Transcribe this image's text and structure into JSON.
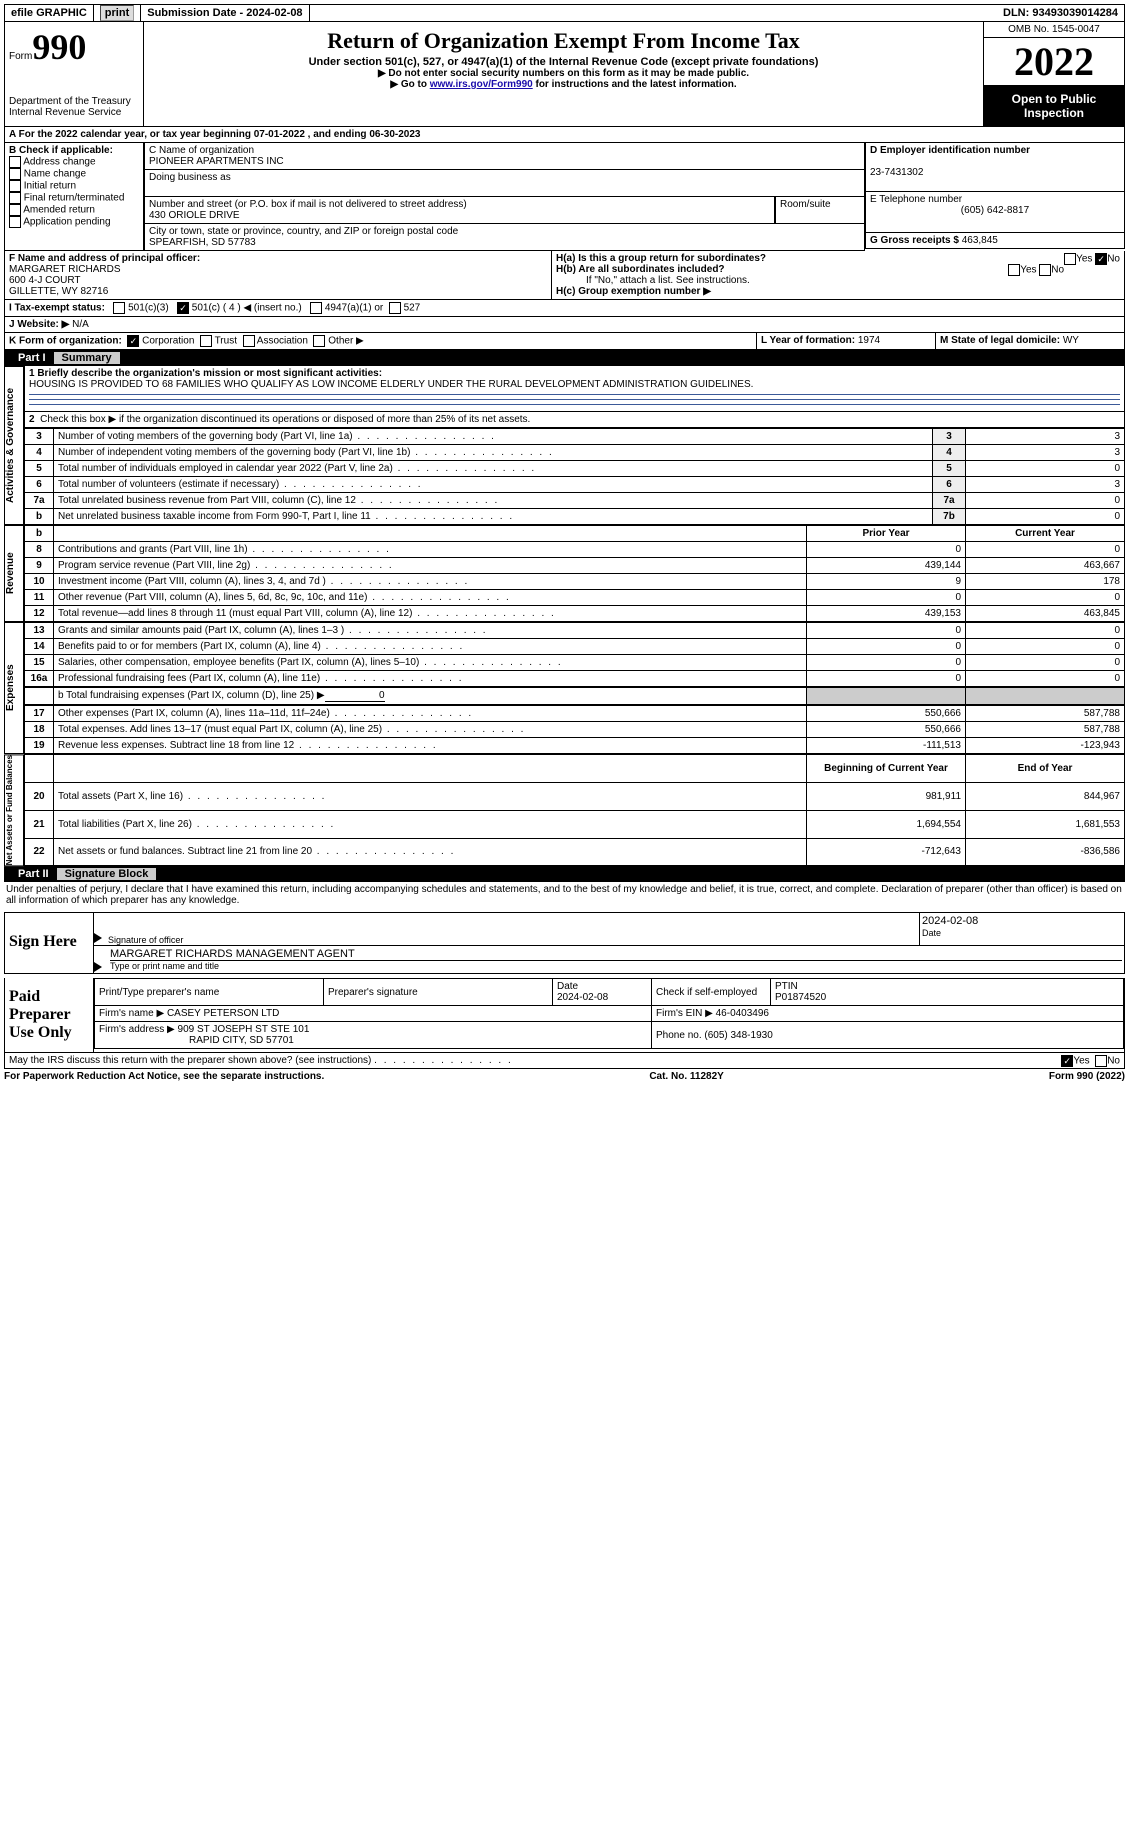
{
  "topbar": {
    "efile": "efile GRAPHIC",
    "print": "print",
    "submission_label": "Submission Date - ",
    "submission_date": "2024-02-08",
    "dln_label": "DLN: ",
    "dln": "93493039014284"
  },
  "header": {
    "form_label": "Form",
    "form_number": "990",
    "dept": "Department of the Treasury\nInternal Revenue Service",
    "title": "Return of Organization Exempt From Income Tax",
    "subtitle": "Under section 501(c), 527, or 4947(a)(1) of the Internal Revenue Code (except private foundations)",
    "note1": "▶ Do not enter social security numbers on this form as it may be made public.",
    "note2_pre": "▶ Go to ",
    "note2_link": "www.irs.gov/Form990",
    "note2_post": " for instructions and the latest information.",
    "omb": "OMB No. 1545-0047",
    "year": "2022",
    "inspection": "Open to Public Inspection"
  },
  "line_a": "A For the 2022 calendar year, or tax year beginning 07-01-2022    , and ending 06-30-2023",
  "b": {
    "label": "B Check if applicable:",
    "opts": [
      "Address change",
      "Name change",
      "Initial return",
      "Final return/terminated",
      "Amended return",
      "Application pending"
    ]
  },
  "c": {
    "name_label": "C Name of organization",
    "name": "PIONEER APARTMENTS INC",
    "dba_label": "Doing business as",
    "addr_label": "Number and street (or P.O. box if mail is not delivered to street address)",
    "room_label": "Room/suite",
    "addr": "430 ORIOLE DRIVE",
    "city_label": "City or town, state or province, country, and ZIP or foreign postal code",
    "city": "SPEARFISH, SD  57783"
  },
  "d": {
    "label": "D Employer identification number",
    "value": "23-7431302"
  },
  "e": {
    "label": "E Telephone number",
    "value": "(605) 642-8817"
  },
  "g": {
    "label": "G Gross receipts $ ",
    "value": "463,845"
  },
  "f": {
    "label": "F  Name and address of principal officer:",
    "name": "MARGARET RICHARDS",
    "addr1": "600 4-J COURT",
    "addr2": "GILLETTE, WY  82716"
  },
  "h": {
    "a_label": "H(a)  Is this a group return for subordinates?",
    "b_label": "H(b)  Are all subordinates included?",
    "note": "If \"No,\" attach a list. See instructions.",
    "c_label": "H(c)  Group exemption number ▶",
    "yes": "Yes",
    "no": "No"
  },
  "i": {
    "label": "I   Tax-exempt status:",
    "o1": "501(c)(3)",
    "o2": "501(c) ( 4 ) ◀ (insert no.)",
    "o3": "4947(a)(1) or",
    "o4": "527"
  },
  "j": {
    "label": "J   Website: ▶",
    "value": "  N/A"
  },
  "k": {
    "label": "K Form of organization:",
    "o1": "Corporation",
    "o2": "Trust",
    "o3": "Association",
    "o4": "Other ▶"
  },
  "l": {
    "label": "L Year of formation: ",
    "value": "1974"
  },
  "m": {
    "label": "M State of legal domicile: ",
    "value": "WY"
  },
  "part1": {
    "num": "Part I",
    "title": "Summary",
    "q1_label": "1  Briefly describe the organization's mission or most significant activities:",
    "q1_text": "HOUSING IS PROVIDED TO 68 FAMILIES WHO QUALIFY AS LOW INCOME ELDERLY UNDER THE RURAL DEVELOPMENT ADMINISTRATION GUIDELINES.",
    "q2": "Check this box ▶      if the organization discontinued its operations or disposed of more than 25% of its net assets.",
    "rows_top": [
      {
        "n": "3",
        "t": "Number of voting members of the governing body (Part VI, line 1a)",
        "box": "3",
        "v": "3"
      },
      {
        "n": "4",
        "t": "Number of independent voting members of the governing body (Part VI, line 1b)",
        "box": "4",
        "v": "3"
      },
      {
        "n": "5",
        "t": "Total number of individuals employed in calendar year 2022 (Part V, line 2a)",
        "box": "5",
        "v": "0"
      },
      {
        "n": "6",
        "t": "Total number of volunteers (estimate if necessary)",
        "box": "6",
        "v": "3"
      },
      {
        "n": "7a",
        "t": "Total unrelated business revenue from Part VIII, column (C), line 12",
        "box": "7a",
        "v": "0"
      },
      {
        "n": "b",
        "t": "Net unrelated business taxable income from Form 990-T, Part I, line 11",
        "box": "7b",
        "v": "0"
      }
    ],
    "prior_year": "Prior Year",
    "current_year": "Current Year",
    "revenue_rows": [
      {
        "n": "8",
        "t": "Contributions and grants (Part VIII, line 1h)",
        "py": "0",
        "cy": "0"
      },
      {
        "n": "9",
        "t": "Program service revenue (Part VIII, line 2g)",
        "py": "439,144",
        "cy": "463,667"
      },
      {
        "n": "10",
        "t": "Investment income (Part VIII, column (A), lines 3, 4, and 7d )",
        "py": "9",
        "cy": "178"
      },
      {
        "n": "11",
        "t": "Other revenue (Part VIII, column (A), lines 5, 6d, 8c, 9c, 10c, and 11e)",
        "py": "0",
        "cy": "0"
      },
      {
        "n": "12",
        "t": "Total revenue—add lines 8 through 11 (must equal Part VIII, column (A), line 12)",
        "py": "439,153",
        "cy": "463,845"
      }
    ],
    "expense_rows": [
      {
        "n": "13",
        "t": "Grants and similar amounts paid (Part IX, column (A), lines 1–3 )",
        "py": "0",
        "cy": "0"
      },
      {
        "n": "14",
        "t": "Benefits paid to or for members (Part IX, column (A), line 4)",
        "py": "0",
        "cy": "0"
      },
      {
        "n": "15",
        "t": "Salaries, other compensation, employee benefits (Part IX, column (A), lines 5–10)",
        "py": "0",
        "cy": "0"
      },
      {
        "n": "16a",
        "t": "Professional fundraising fees (Part IX, column (A), line 11e)",
        "py": "0",
        "cy": "0"
      }
    ],
    "line_b": "b  Total fundraising expenses (Part IX, column (D), line 25) ▶",
    "line_b_val": "0",
    "expense_rows2": [
      {
        "n": "17",
        "t": "Other expenses (Part IX, column (A), lines 11a–11d, 11f–24e)",
        "py": "550,666",
        "cy": "587,788"
      },
      {
        "n": "18",
        "t": "Total expenses. Add lines 13–17 (must equal Part IX, column (A), line 25)",
        "py": "550,666",
        "cy": "587,788"
      },
      {
        "n": "19",
        "t": "Revenue less expenses. Subtract line 18 from line 12",
        "py": "-111,513",
        "cy": "-123,943"
      }
    ],
    "begin_year": "Beginning of Current Year",
    "end_year": "End of Year",
    "net_rows": [
      {
        "n": "20",
        "t": "Total assets (Part X, line 16)",
        "py": "981,911",
        "cy": "844,967"
      },
      {
        "n": "21",
        "t": "Total liabilities (Part X, line 26)",
        "py": "1,694,554",
        "cy": "1,681,553"
      },
      {
        "n": "22",
        "t": "Net assets or fund balances. Subtract line 21 from line 20",
        "py": "-712,643",
        "cy": "-836,586"
      }
    ],
    "vlabels": {
      "ag": "Activities & Governance",
      "rev": "Revenue",
      "exp": "Expenses",
      "net": "Net Assets or Fund Balances"
    }
  },
  "part2": {
    "num": "Part II",
    "title": "Signature Block",
    "declaration": "Under penalties of perjury, I declare that I have examined this return, including accompanying schedules and statements, and to the best of my knowledge and belief, it is true, correct, and complete. Declaration of preparer (other than officer) is based on all information of which preparer has any knowledge.",
    "sign_here": "Sign Here",
    "sig_officer": "Signature of officer",
    "sig_date": "2024-02-08",
    "officer_name": "MARGARET RICHARDS  MANAGEMENT AGENT",
    "type_name": "Type or print name and title",
    "paid_prep": "Paid Preparer Use Only",
    "p_name_label": "Print/Type preparer's name",
    "p_sig_label": "Preparer's signature",
    "p_date_label": "Date",
    "p_date": "2024-02-08",
    "p_check_label": "Check       if self-employed",
    "ptin_label": "PTIN",
    "ptin": "P01874520",
    "firm_name_label": "Firm's name    ▶ ",
    "firm_name": "CASEY PETERSON LTD",
    "firm_ein_label": "Firm's EIN ▶ ",
    "firm_ein": "46-0403496",
    "firm_addr_label": "Firm's address ▶ ",
    "firm_addr1": "909 ST JOSEPH ST STE 101",
    "firm_addr2": "RAPID CITY, SD  57701",
    "phone_label": "Phone no. ",
    "phone": "(605) 348-1930",
    "may_irs": "May the IRS discuss this return with the preparer shown above? (see instructions)"
  },
  "footer": {
    "left": "For Paperwork Reduction Act Notice, see the separate instructions.",
    "mid": "Cat. No. 11282Y",
    "right": "Form 990 (2022)"
  },
  "colors": {
    "link": "#1a0dab",
    "shade": "#cccccc",
    "hr": "#3b5998"
  }
}
